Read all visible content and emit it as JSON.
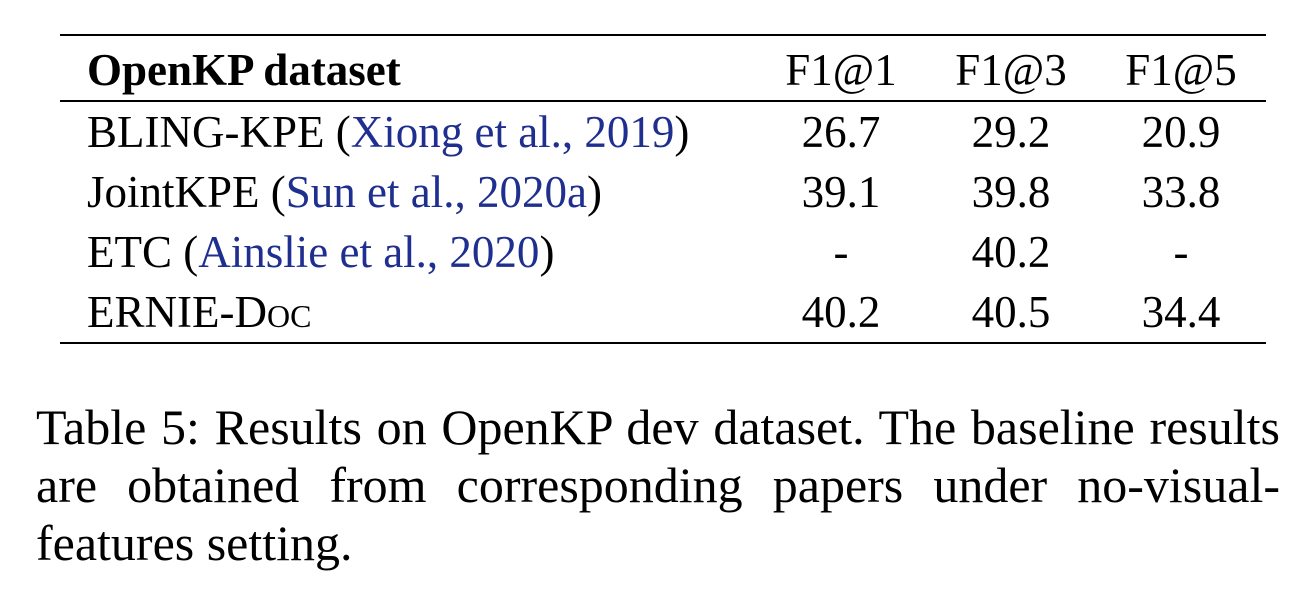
{
  "table": {
    "header": {
      "name": "OpenKP dataset",
      "cols": [
        "F1@1",
        "F1@3",
        "F1@5"
      ]
    },
    "rows": [
      {
        "name": "BLING-KPE (",
        "cite": "Xiong et al., 2019",
        "close": ")",
        "values": [
          "26.7",
          "29.2",
          "20.9"
        ],
        "bold": [
          false,
          false,
          false
        ]
      },
      {
        "name": "JointKPE (",
        "cite": "Sun et al., 2020a",
        "close": ")",
        "values": [
          "39.1",
          "39.8",
          "33.8"
        ],
        "bold": [
          false,
          false,
          false
        ]
      },
      {
        "name": "ETC (",
        "cite": "Ainslie et al., 2020",
        "close": ")",
        "values": [
          "-",
          "40.2",
          "-"
        ],
        "bold": [
          false,
          false,
          false
        ]
      },
      {
        "name_main": "ERNIE-D",
        "name_sc": "oc",
        "values": [
          "40.2",
          "40.5",
          "34.4"
        ],
        "bold": [
          true,
          true,
          true
        ]
      }
    ]
  },
  "caption": "Table 5: Results on OpenKP dev dataset. The baseline results are obtained from corresponding papers under no-visual-features setting.",
  "colors": {
    "citation": "#1f2f8f"
  }
}
